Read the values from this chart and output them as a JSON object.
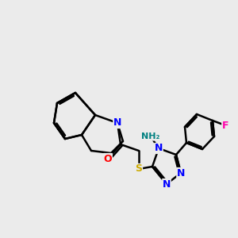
{
  "background_color": "#ebebeb",
  "bond_color": "#000000",
  "bond_width": 1.8,
  "atom_colors": {
    "N": "#0000ff",
    "O": "#ff0000",
    "S": "#ccaa00",
    "F": "#ff00aa",
    "NH2_color": "#008080",
    "C": "#000000"
  },
  "font_size": 9,
  "font_size_small": 8
}
